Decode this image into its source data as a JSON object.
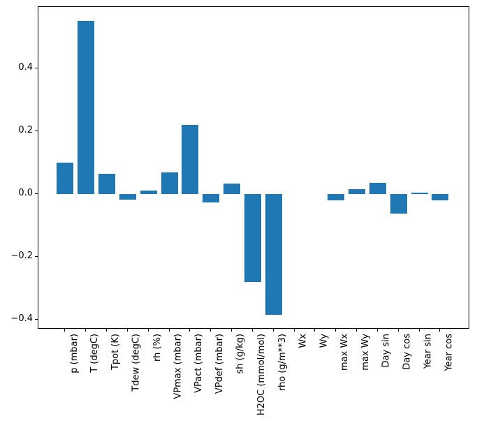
{
  "chart_data": {
    "type": "bar",
    "title": "",
    "xlabel": "",
    "ylabel": "",
    "categories": [
      "p (mbar)",
      "T (degC)",
      "Tpot (K)",
      "Tdew (degC)",
      "rh (%)",
      "VPmax (mbar)",
      "VPact (mbar)",
      "VPdef (mbar)",
      "sh (g/kg)",
      "H2OC (mmol/mol)",
      "rho (g/m**3)",
      "Wx",
      "Wy",
      "max Wx",
      "max Wy",
      "Day sin",
      "Day cos",
      "Year sin",
      "Year cos"
    ],
    "values": [
      0.1,
      0.552,
      0.065,
      -0.017,
      0.012,
      0.069,
      0.221,
      -0.026,
      0.034,
      -0.28,
      -0.385,
      0.0,
      0.0,
      -0.02,
      0.016,
      0.035,
      -0.062,
      0.004,
      -0.021
    ],
    "ylim": [
      -0.432,
      0.597
    ],
    "yticks": [
      {
        "value": 0.4,
        "label": "0.4"
      },
      {
        "value": 0.2,
        "label": "0.2"
      },
      {
        "value": 0.0,
        "label": "0.0"
      },
      {
        "value": -0.2,
        "label": "−0.2"
      },
      {
        "value": -0.4,
        "label": "−0.4"
      }
    ],
    "bar_color": "#1f77b4",
    "axis_color": "#000000",
    "background": "#ffffff",
    "grid": false,
    "legend": null
  }
}
